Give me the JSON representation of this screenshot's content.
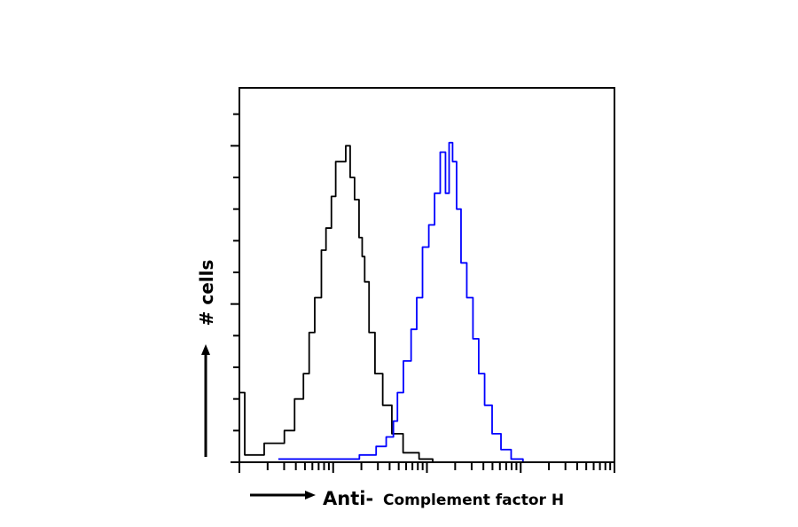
{
  "chart_data": {
    "type": "line",
    "subtype": "flow-cytometry-histogram",
    "title": "",
    "xlabel_prefix": "Anti-",
    "xlabel": "Complement factor H",
    "ylabel": "# cells",
    "xscale": "log",
    "xlim": [
      1,
      10000
    ],
    "ylim": [
      0,
      12
    ],
    "y_major_ticks": [
      0,
      5,
      10
    ],
    "grid": false,
    "legend": "none",
    "series": [
      {
        "color": "#000000",
        "x": [
          1,
          1.3,
          2.6,
          3.5,
          4.3,
          5.4,
          5.7,
          7.1,
          7.9,
          8.9,
          10.3,
          11,
          12.8,
          14.5,
          15.9,
          18,
          19.8,
          21,
          22.4,
          26,
          30,
          38,
          47,
          66,
          103,
          129
        ],
        "y": [
          2.2,
          0.23,
          0.6,
          1.0,
          2.0,
          2.8,
          4.1,
          5.2,
          6.7,
          7.4,
          8.4,
          9.5,
          9.5,
          10.0,
          9.0,
          8.3,
          7.1,
          6.5,
          5.7,
          4.1,
          2.8,
          1.8,
          0.9,
          0.3,
          0.1,
          0
        ]
      },
      {
        "color": "#0000ff",
        "x": [
          2.6,
          14.5,
          25,
          33,
          41,
          47,
          50,
          63,
          73,
          83,
          97,
          113,
          129,
          149,
          167,
          178,
          198,
          217,
          246,
          288,
          333,
          382,
          445,
          552,
          688,
          909,
          1230
        ],
        "y": [
          0.1,
          0.1,
          0.23,
          0.5,
          0.8,
          1.3,
          2.2,
          3.2,
          4.2,
          5.2,
          6.8,
          7.5,
          8.5,
          9.8,
          8.5,
          10.1,
          9.5,
          8.0,
          6.3,
          5.2,
          3.9,
          2.8,
          1.8,
          0.9,
          0.4,
          0.1,
          0
        ]
      }
    ]
  }
}
